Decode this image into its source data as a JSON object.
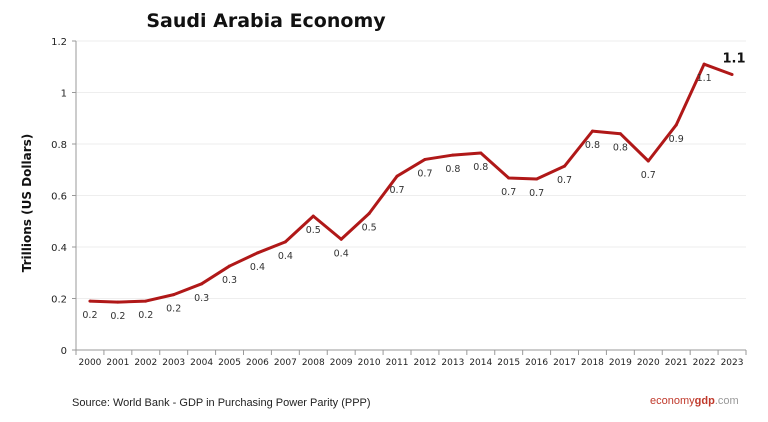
{
  "chart_data": {
    "type": "line",
    "title": "Saudi Arabia Economy",
    "xlabel": "",
    "ylabel": "Trillions (US Dollars)",
    "ylim": [
      0,
      1.2
    ],
    "yticks": [
      "0",
      "0.2",
      "0.4",
      "0.6",
      "0.8",
      "1",
      "1.2"
    ],
    "grid": true,
    "line_color": "#b01818",
    "x": [
      "2000",
      "2001",
      "2002",
      "2003",
      "2004",
      "2005",
      "2006",
      "2007",
      "2008",
      "2009",
      "2010",
      "2011",
      "2012",
      "2013",
      "2014",
      "2015",
      "2016",
      "2017",
      "2018",
      "2019",
      "2020",
      "2021",
      "2022",
      "2023"
    ],
    "series": [
      {
        "values": [
          0.19,
          0.186,
          0.19,
          0.215,
          0.257,
          0.326,
          0.377,
          0.42,
          0.52,
          0.43,
          0.53,
          0.675,
          0.74,
          0.757,
          0.765,
          0.668,
          0.664,
          0.714,
          0.85,
          0.84,
          0.734,
          0.874,
          1.11,
          1.07
        ],
        "labels": [
          "0.2",
          "0.2",
          "0.2",
          "0.2",
          "0.3",
          "0.3",
          "0.4",
          "0.4",
          "0.5",
          "0.4",
          "0.5",
          "0.7",
          "0.7",
          "0.8",
          "0.8",
          "0.7",
          "0.7",
          "0.7",
          "0.8",
          "0.8",
          "0.7",
          "0.9",
          "1.1",
          "1.1"
        ]
      }
    ]
  },
  "footer": {
    "source": "Source:  World Bank -  GDP  in Purchasing Power Parity (PPP)",
    "brand_a": "economy",
    "brand_b": "gdp",
    "brand_c": ".com"
  }
}
